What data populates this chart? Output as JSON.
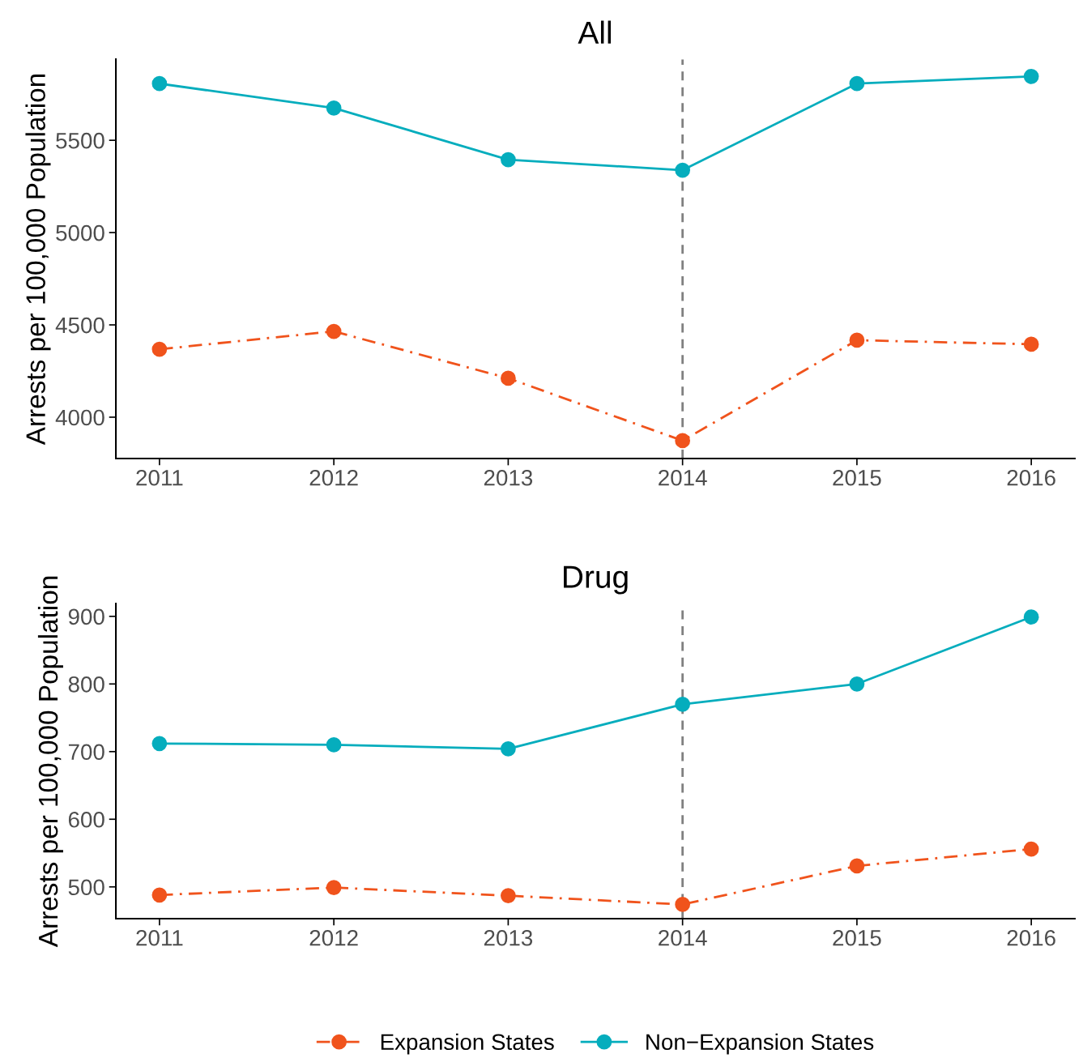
{
  "chart_data": [
    {
      "type": "line",
      "title": "All",
      "ylabel": "Arrests per 100,000 Population",
      "x": [
        2011,
        2012,
        2013,
        2014,
        2015,
        2016
      ],
      "xlim": [
        2010.75,
        2016.25
      ],
      "xticks": [
        2011,
        2012,
        2013,
        2014,
        2015,
        2016
      ],
      "ylim": [
        3776,
        5939
      ],
      "yticks": [
        4000,
        4500,
        5000,
        5500
      ],
      "grid": false,
      "marker": "circle",
      "ref_lines": [
        {
          "axis": "x",
          "value": 2014,
          "color": "#808080",
          "line_style": "dashed"
        }
      ],
      "series": [
        {
          "color": "#f0531c",
          "line_style": "dashdot",
          "values": [
            4368,
            4465,
            4211,
            3873,
            4417,
            4395
          ]
        },
        {
          "color": "#05adbd",
          "line_style": "solid",
          "values": [
            5807,
            5675,
            5395,
            5338,
            5807,
            5846
          ]
        }
      ]
    },
    {
      "type": "line",
      "title": "Drug",
      "ylabel": "Arrests per 100,000 Population",
      "x": [
        2011,
        2012,
        2013,
        2014,
        2015,
        2016
      ],
      "xlim": [
        2010.75,
        2016.25
      ],
      "xticks": [
        2011,
        2012,
        2013,
        2014,
        2015,
        2016
      ],
      "ylim": [
        453,
        919
      ],
      "yticks": [
        500,
        600,
        700,
        800,
        900
      ],
      "grid": false,
      "legend": "bottom",
      "marker": "circle",
      "ref_lines": [
        {
          "axis": "x",
          "value": 2014,
          "color": "#808080",
          "line_style": "dashed"
        }
      ],
      "series": [
        {
          "name": "Expansion States",
          "color": "#f0531c",
          "line_style": "dashdot",
          "values": [
            488,
            499,
            487,
            474,
            531,
            556
          ]
        },
        {
          "name": "Non−Expansion States",
          "color": "#05adbd",
          "line_style": "solid",
          "values": [
            712,
            710,
            704,
            770,
            800,
            899
          ]
        }
      ]
    }
  ]
}
